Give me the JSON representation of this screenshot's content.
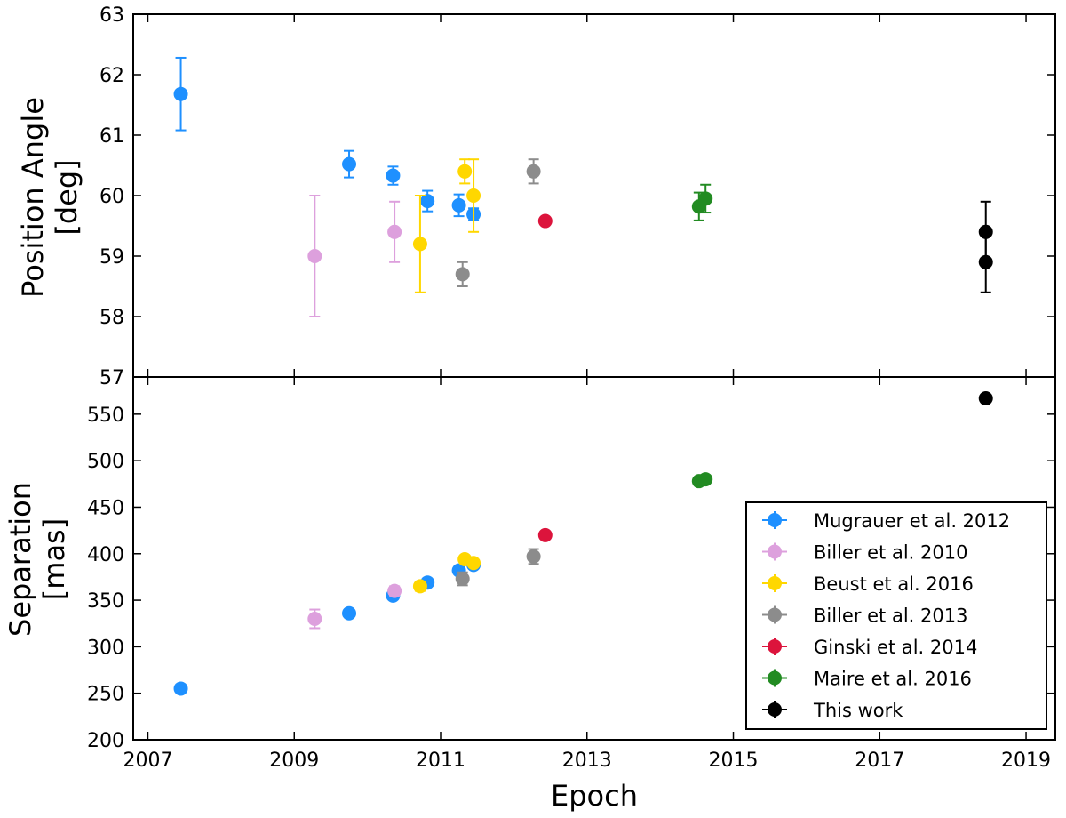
{
  "chart_data": {
    "type": "scatter",
    "xlabel": "Epoch",
    "xlim": [
      2006.8,
      2019.4
    ],
    "xticks": [
      2007,
      2009,
      2011,
      2013,
      2015,
      2017,
      2019
    ],
    "xtick_labels": [
      "2007",
      "2009",
      "2011",
      "2013",
      "2015",
      "2017",
      "2019"
    ],
    "panels": [
      {
        "id": "pa",
        "ylabel_lines": [
          "Position Angle",
          "[deg]"
        ],
        "ylim": [
          57,
          63
        ],
        "yticks": [
          57,
          58,
          59,
          60,
          61,
          62,
          63
        ],
        "ytick_labels": [
          "57",
          "58",
          "59",
          "60",
          "61",
          "62",
          "63"
        ]
      },
      {
        "id": "sep",
        "ylabel_lines": [
          "Separation",
          "[mas]"
        ],
        "ylim": [
          200,
          590
        ],
        "yticks": [
          200,
          250,
          300,
          350,
          400,
          450,
          500,
          550
        ],
        "ytick_labels": [
          "200",
          "250",
          "300",
          "350",
          "400",
          "450",
          "500",
          "550"
        ]
      }
    ],
    "series": [
      {
        "name": "Mugrauer et al. 2012",
        "color": "#1e90ff",
        "pa": [
          {
            "x": 2007.45,
            "y": 61.68,
            "err": 0.6
          },
          {
            "x": 2009.75,
            "y": 60.52,
            "err": 0.22
          },
          {
            "x": 2010.35,
            "y": 60.33,
            "err": 0.15
          },
          {
            "x": 2010.82,
            "y": 59.91,
            "err": 0.17
          },
          {
            "x": 2011.25,
            "y": 59.84,
            "err": 0.18
          },
          {
            "x": 2011.45,
            "y": 59.69,
            "err": 0.1
          }
        ],
        "sep": [
          {
            "x": 2007.45,
            "y": 255,
            "err": 3
          },
          {
            "x": 2009.75,
            "y": 336,
            "err": 3
          },
          {
            "x": 2010.35,
            "y": 355,
            "err": 3
          },
          {
            "x": 2010.82,
            "y": 369,
            "err": 3
          },
          {
            "x": 2011.25,
            "y": 382,
            "err": 3
          },
          {
            "x": 2011.45,
            "y": 388,
            "err": 3
          }
        ]
      },
      {
        "name": "Biller et al. 2010",
        "color": "#dda0dd",
        "pa": [
          {
            "x": 2009.28,
            "y": 59.0,
            "err": 1.0
          },
          {
            "x": 2010.37,
            "y": 59.4,
            "err": 0.5
          }
        ],
        "sep": [
          {
            "x": 2009.28,
            "y": 330,
            "err": 10
          },
          {
            "x": 2010.37,
            "y": 360,
            "err": 5
          }
        ]
      },
      {
        "name": "Beust et al. 2016",
        "color": "#ffd700",
        "pa": [
          {
            "x": 2010.72,
            "y": 59.2,
            "err": 0.8
          },
          {
            "x": 2011.33,
            "y": 60.4,
            "err": 0.2
          },
          {
            "x": 2011.45,
            "y": 60.0,
            "err": 0.6
          }
        ],
        "sep": [
          {
            "x": 2010.72,
            "y": 365,
            "err": 5
          },
          {
            "x": 2011.33,
            "y": 394,
            "err": 3
          },
          {
            "x": 2011.45,
            "y": 390,
            "err": 3
          }
        ]
      },
      {
        "name": "Biller et al. 2013",
        "color": "#8c8c8c",
        "pa": [
          {
            "x": 2011.3,
            "y": 58.7,
            "err": 0.2
          },
          {
            "x": 2012.27,
            "y": 60.4,
            "err": 0.2
          }
        ],
        "sep": [
          {
            "x": 2011.3,
            "y": 373,
            "err": 7
          },
          {
            "x": 2012.27,
            "y": 397,
            "err": 8
          }
        ]
      },
      {
        "name": "Ginski et al. 2014",
        "color": "#dc143c",
        "pa": [
          {
            "x": 2012.43,
            "y": 59.58,
            "err": 0.05
          }
        ],
        "sep": [
          {
            "x": 2012.43,
            "y": 420,
            "err": 2
          }
        ]
      },
      {
        "name": "Maire et al. 2016",
        "color": "#228b22",
        "pa": [
          {
            "x": 2014.53,
            "y": 59.82,
            "err": 0.23
          },
          {
            "x": 2014.62,
            "y": 59.95,
            "err": 0.23
          }
        ],
        "sep": [
          {
            "x": 2014.53,
            "y": 478,
            "err": 2
          },
          {
            "x": 2014.62,
            "y": 480,
            "err": 2
          }
        ]
      },
      {
        "name": "This work",
        "color": "#000000",
        "pa": [
          {
            "x": 2018.45,
            "y": 59.4,
            "err": 0.5
          },
          {
            "x": 2018.45,
            "y": 58.9,
            "err": 0.5
          }
        ],
        "sep": [
          {
            "x": 2018.45,
            "y": 567,
            "err": 2
          }
        ]
      }
    ]
  }
}
